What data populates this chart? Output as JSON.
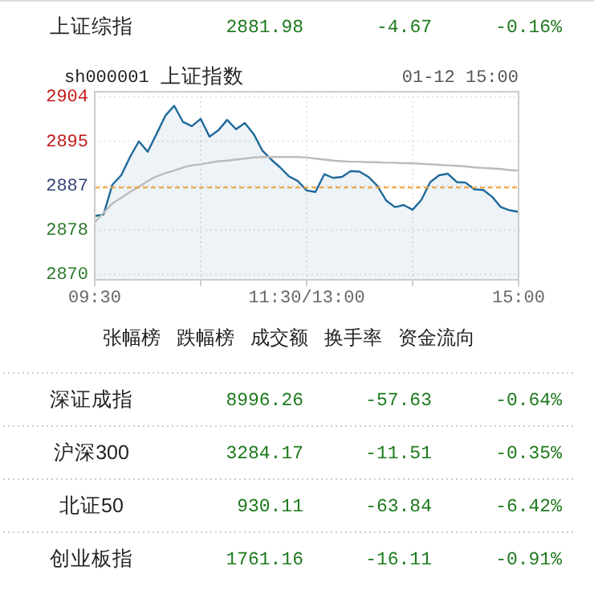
{
  "chart_data": [
    {
      "type": "other",
      "annotations": [
        "上证综指",
        "2881.98",
        "-4.67",
        "-0.16%"
      ]
    },
    {
      "type": "line",
      "title": "上证指数",
      "subtitle": "sh000001",
      "annotations": [
        "01-12 15:00"
      ],
      "categories": [
        "09:30",
        null,
        null,
        null,
        null,
        null,
        null,
        null,
        null,
        null,
        null,
        null,
        null,
        null,
        null,
        null,
        null,
        null,
        null,
        null,
        null,
        null,
        null,
        null,
        "11:30/13:00",
        null,
        null,
        null,
        null,
        null,
        null,
        null,
        null,
        null,
        null,
        null,
        null,
        null,
        null,
        null,
        null,
        null,
        null,
        null,
        null,
        null,
        null,
        null,
        "15:00"
      ],
      "series": [
        {
          "type": "area",
          "color": "#1f6a9a",
          "values": [
            2881.2,
            2881.5,
            2887.2,
            2889.0,
            2892.5,
            2895.5,
            2893.5,
            2896.9,
            2900.4,
            2902.3,
            2899.2,
            2898.4,
            2899.8,
            2896.4,
            2897.6,
            2899.6,
            2897.8,
            2899.0,
            2896.9,
            2893.7,
            2892.0,
            2890.5,
            2888.8,
            2887.9,
            2886.1,
            2885.8,
            2889.2,
            2888.5,
            2888.7,
            2889.8,
            2889.7,
            2888.7,
            2887.0,
            2884.2,
            2882.9,
            2883.3,
            2882.4,
            2884.3,
            2887.7,
            2889.0,
            2889.3,
            2887.7,
            2887.6,
            2886.3,
            2886.2,
            2884.9,
            2882.9,
            2882.3,
            2882.0
          ]
        },
        {
          "type": "line",
          "color": "#bbbbbb",
          "values": [
            2880.0,
            2881.8,
            2883.6,
            2884.7,
            2885.8,
            2886.8,
            2887.9,
            2888.8,
            2889.4,
            2889.9,
            2890.5,
            2890.9,
            2891.1,
            2891.4,
            2891.7,
            2891.8,
            2892.0,
            2892.2,
            2892.4,
            2892.5,
            2892.5,
            2892.5,
            2892.5,
            2892.5,
            2892.4,
            2892.2,
            2892.0,
            2891.8,
            2891.7,
            2891.6,
            2891.6,
            2891.5,
            2891.5,
            2891.4,
            2891.4,
            2891.3,
            2891.3,
            2891.2,
            2891.1,
            2891.0,
            2890.9,
            2890.8,
            2890.7,
            2890.5,
            2890.4,
            2890.3,
            2890.2,
            2890.0,
            2889.9
          ]
        }
      ],
      "ylim": [
        2869,
        2905
      ],
      "yticks": [
        2904,
        {
          "value": 2895.5,
          "label": "2895"
        },
        2887,
        {
          "value": 2878.5,
          "label": "2878"
        },
        2870
      ],
      "ref_lines": [
        {
          "axis": "y",
          "value": 2886.65,
          "label": null,
          "color": "#f0a030",
          "line_style": "dashed"
        }
      ],
      "grid": true
    },
    {
      "type": "other",
      "annotations": [
        "张幅榜",
        "跌幅榜",
        "成交额",
        "换手率",
        "资金流向"
      ]
    },
    {
      "type": "other",
      "annotations": [
        "深证成指",
        "8996.26",
        "-57.63",
        "-0.64%",
        "沪深300",
        "3284.17",
        "-11.51",
        "-0.35%",
        "北证50",
        "930.11",
        "-63.84",
        "-6.42%",
        "创业板指",
        "1761.16",
        "-16.11",
        "-0.91%"
      ]
    }
  ]
}
